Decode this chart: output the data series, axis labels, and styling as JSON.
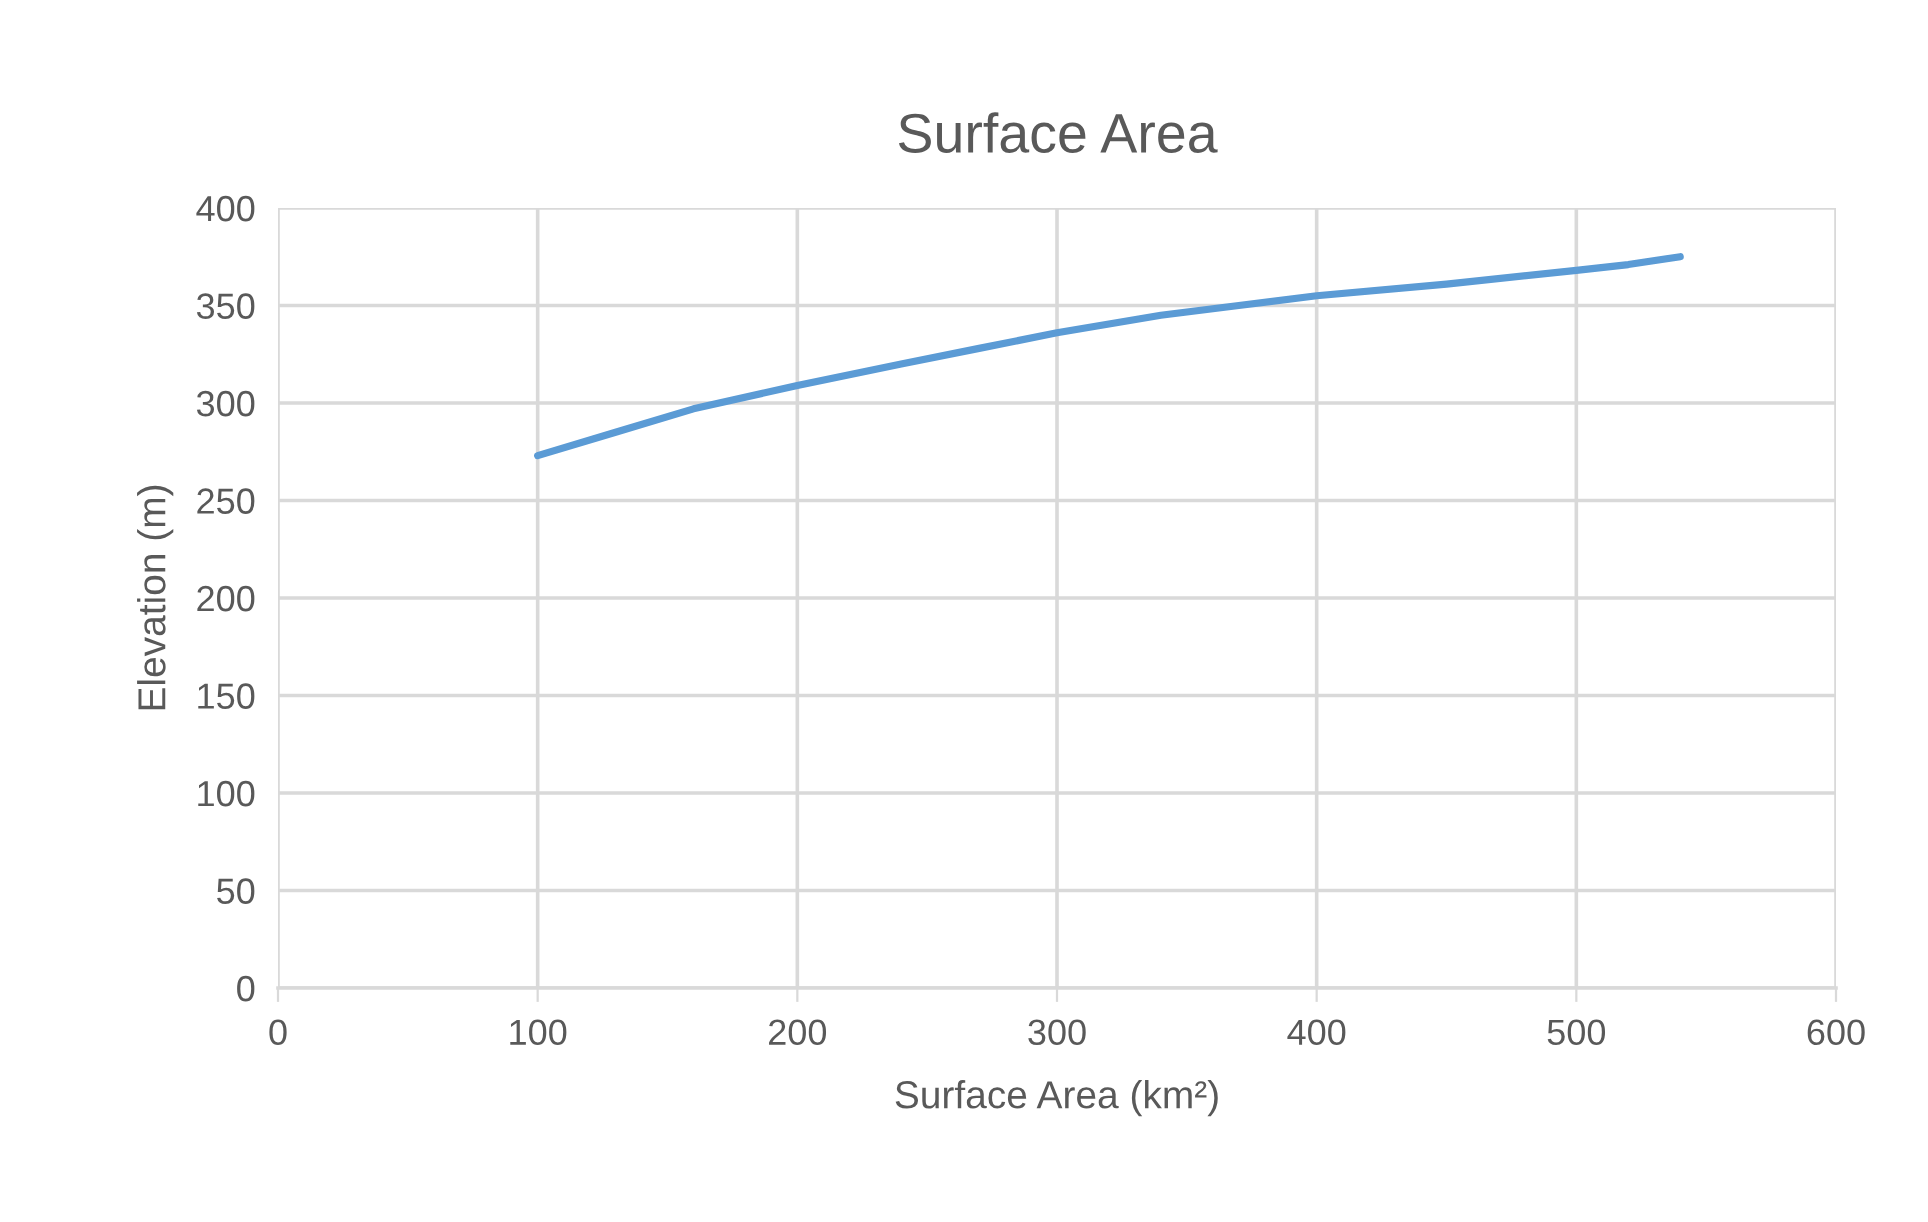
{
  "chart_data": {
    "type": "line",
    "title": "Surface Area",
    "xlabel": "Surface Area (km²)",
    "ylabel": "Elevation (m)",
    "x": [
      100,
      130,
      160,
      200,
      240,
      270,
      300,
      340,
      370,
      400,
      450,
      500,
      520,
      540
    ],
    "series": [
      {
        "color": "#5b9bd5",
        "values": [
          273,
          285,
          297,
          309,
          320,
          328,
          336,
          345,
          350,
          355,
          361,
          368,
          371,
          375
        ]
      }
    ],
    "xlim": [
      0,
      600
    ],
    "xticks": [
      0,
      100,
      200,
      300,
      400,
      500,
      600
    ],
    "ylim": [
      0,
      400
    ],
    "yticks": [
      0,
      50,
      100,
      150,
      200,
      250,
      300,
      350,
      400
    ],
    "grid": true,
    "marker": "none",
    "line_style": "solid"
  }
}
